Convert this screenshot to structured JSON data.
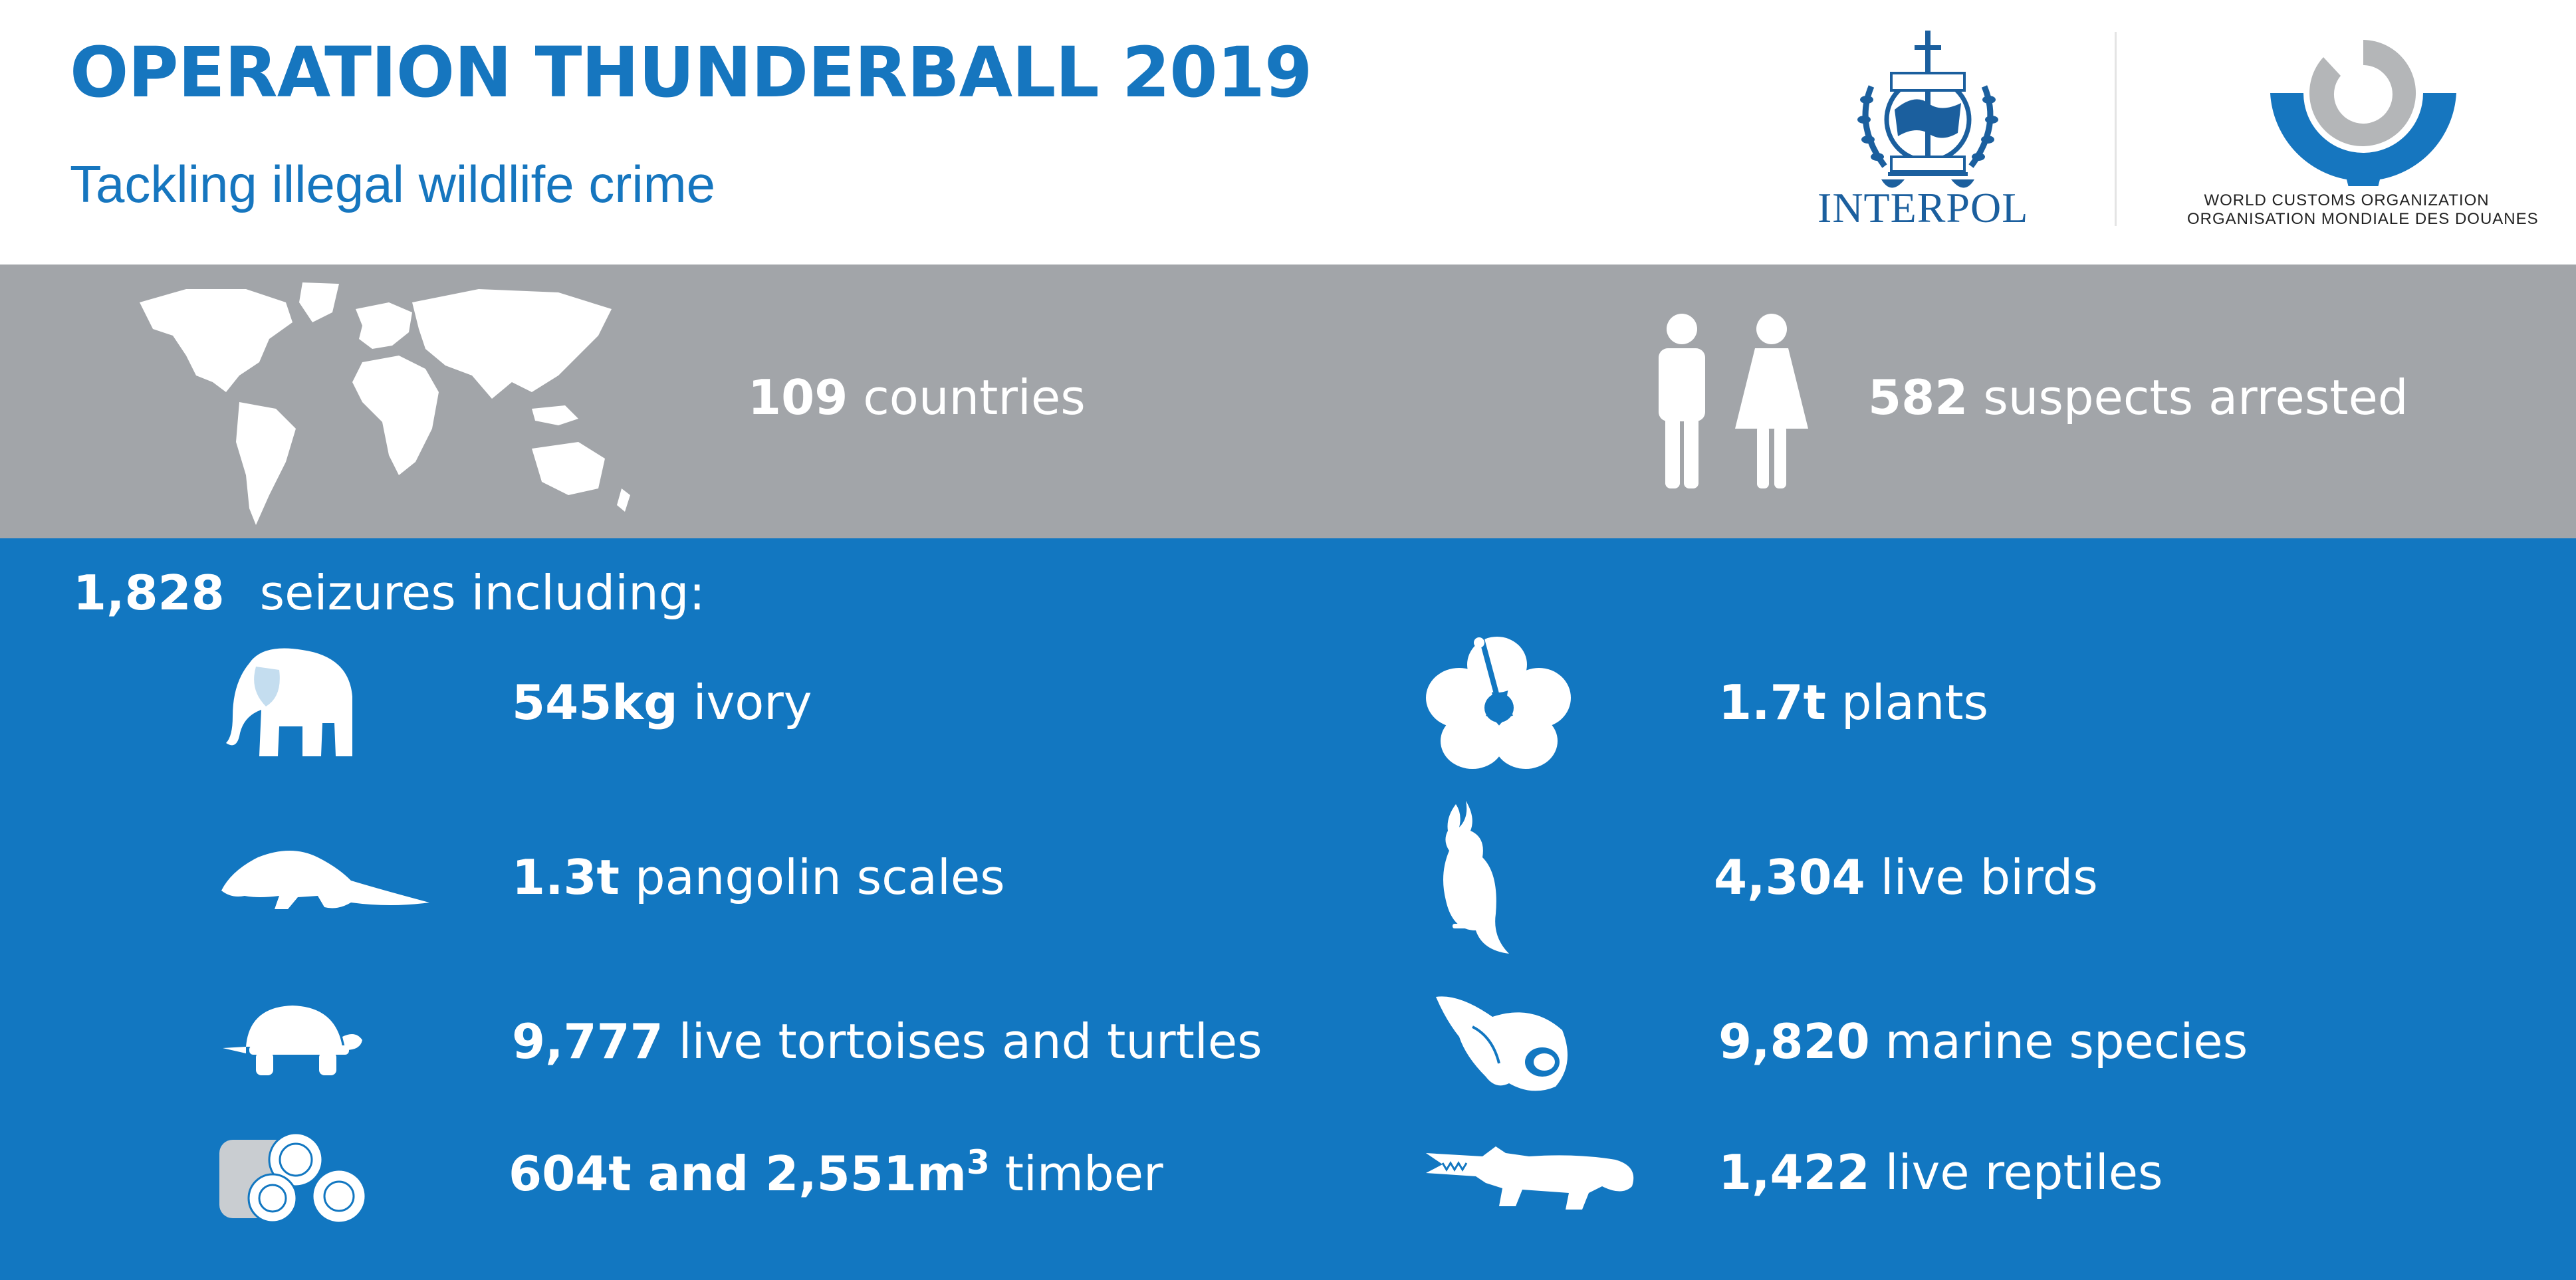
{
  "header": {
    "title": "OPERATION THUNDERBALL 2019",
    "subtitle": "Tackling illegal wildlife crime",
    "interpol_text": "INTERPOL",
    "wco_en": "WORLD CUSTOMS ORGANIZATION",
    "wco_fr": "ORGANISATION MONDIALE DES DOUANES"
  },
  "stats": {
    "countries_value": "109",
    "countries_label": "countries",
    "suspects_value": "582",
    "suspects_label": "suspects arrested"
  },
  "seizures": {
    "total": "1,828",
    "label": "seizures including:"
  },
  "items": {
    "ivory": {
      "value": "545kg",
      "label": "ivory",
      "icon": "elephant-icon"
    },
    "pangolin": {
      "value": "1.3t",
      "label": "pangolin scales",
      "icon": "pangolin-icon"
    },
    "tortoises": {
      "value": "9,777",
      "label": "live tortoises and turtles",
      "icon": "tortoise-icon"
    },
    "timber": {
      "value_a": "604t and 2,551m",
      "superscript": "3",
      "label": "timber",
      "icon": "log-stack-icon"
    },
    "plants": {
      "value": "1.7t",
      "label": "plants",
      "icon": "hibiscus-icon"
    },
    "birds": {
      "value": "4,304",
      "label": "live birds",
      "icon": "cockatoo-icon"
    },
    "marine": {
      "value": "9,820",
      "label": "marine species",
      "icon": "shell-icon"
    },
    "reptiles": {
      "value": "1,422",
      "label": "live reptiles",
      "icon": "crocodile-icon"
    }
  },
  "colors": {
    "brand_blue": "#1676bf",
    "band_blue": "#1277c1",
    "band_grey": "#a2a5a9",
    "text_white": "#ffffff"
  }
}
